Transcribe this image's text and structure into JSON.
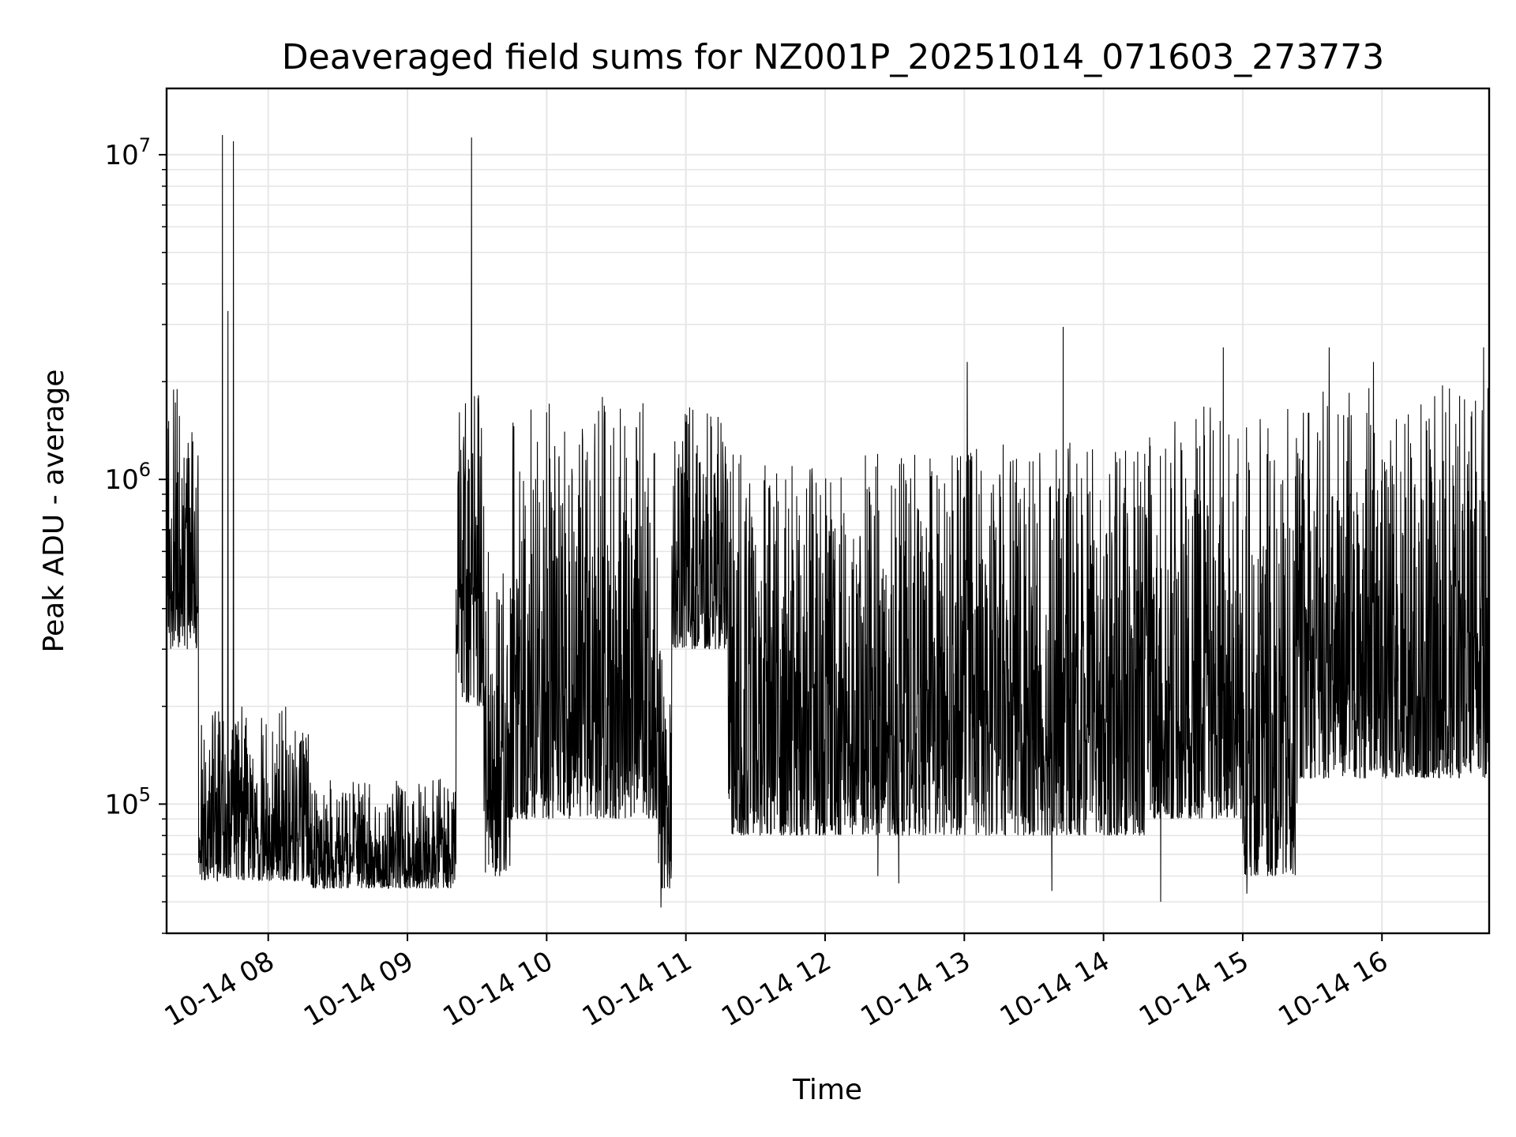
{
  "chart_data": {
    "type": "line",
    "title": "Deaveraged field sums for NZ001P_20251014_071603_273773",
    "xlabel": "Time",
    "ylabel": "Peak ADU - average",
    "yscale": "log",
    "ylim": [
      40000,
      16000000
    ],
    "xlim_hours": [
      7.27,
      16.77
    ],
    "grid": true,
    "x_ticks": [
      {
        "hour": 8,
        "label": "10-14 08"
      },
      {
        "hour": 9,
        "label": "10-14 09"
      },
      {
        "hour": 10,
        "label": "10-14 10"
      },
      {
        "hour": 11,
        "label": "10-14 11"
      },
      {
        "hour": 12,
        "label": "10-14 12"
      },
      {
        "hour": 13,
        "label": "10-14 13"
      },
      {
        "hour": 14,
        "label": "10-14 14"
      },
      {
        "hour": 15,
        "label": "10-14 15"
      },
      {
        "hour": 16,
        "label": "10-14 16"
      }
    ],
    "y_ticks": [
      {
        "value": 100000,
        "base": "10",
        "exp": "5"
      },
      {
        "value": 1000000,
        "base": "10",
        "exp": "6"
      },
      {
        "value": 10000000,
        "base": "10",
        "exp": "7"
      }
    ],
    "series": [
      {
        "name": "field sums",
        "color": "#000000",
        "segments": [
          {
            "start": 7.27,
            "end": 7.5,
            "low": 300000,
            "high": 1900000
          },
          {
            "start": 7.5,
            "end": 8.3,
            "low": 58000,
            "high": 200000
          },
          {
            "start": 8.3,
            "end": 9.35,
            "low": 55000,
            "high": 120000
          },
          {
            "start": 9.35,
            "end": 9.55,
            "low": 200000,
            "high": 1900000
          },
          {
            "start": 9.55,
            "end": 9.75,
            "low": 60000,
            "high": 600000
          },
          {
            "start": 9.75,
            "end": 10.8,
            "low": 90000,
            "high": 1800000
          },
          {
            "start": 10.8,
            "end": 10.9,
            "low": 55000,
            "high": 300000
          },
          {
            "start": 10.9,
            "end": 11.3,
            "low": 300000,
            "high": 1700000
          },
          {
            "start": 11.3,
            "end": 13.0,
            "low": 80000,
            "high": 1200000
          },
          {
            "start": 13.0,
            "end": 14.3,
            "low": 80000,
            "high": 1300000
          },
          {
            "start": 14.3,
            "end": 15.0,
            "low": 90000,
            "high": 1700000
          },
          {
            "start": 15.0,
            "end": 15.4,
            "low": 60000,
            "high": 1700000
          },
          {
            "start": 15.4,
            "end": 16.77,
            "low": 120000,
            "high": 2000000
          }
        ],
        "spikes": [
          {
            "hour": 7.67,
            "value": 11500000
          },
          {
            "hour": 7.71,
            "value": 3300000
          },
          {
            "hour": 7.75,
            "value": 11000000
          },
          {
            "hour": 9.46,
            "value": 11300000
          },
          {
            "hour": 13.02,
            "value": 2300000
          },
          {
            "hour": 13.71,
            "value": 2950000
          },
          {
            "hour": 14.86,
            "value": 2550000
          },
          {
            "hour": 15.62,
            "value": 2550000
          },
          {
            "hour": 15.94,
            "value": 2300000
          },
          {
            "hour": 16.73,
            "value": 2550000
          }
        ],
        "dips": [
          {
            "hour": 10.82,
            "value": 48000
          },
          {
            "hour": 12.38,
            "value": 60000
          },
          {
            "hour": 12.53,
            "value": 57000
          },
          {
            "hour": 13.63,
            "value": 54000
          },
          {
            "hour": 14.41,
            "value": 50000
          },
          {
            "hour": 15.03,
            "value": 53000
          }
        ]
      }
    ]
  }
}
